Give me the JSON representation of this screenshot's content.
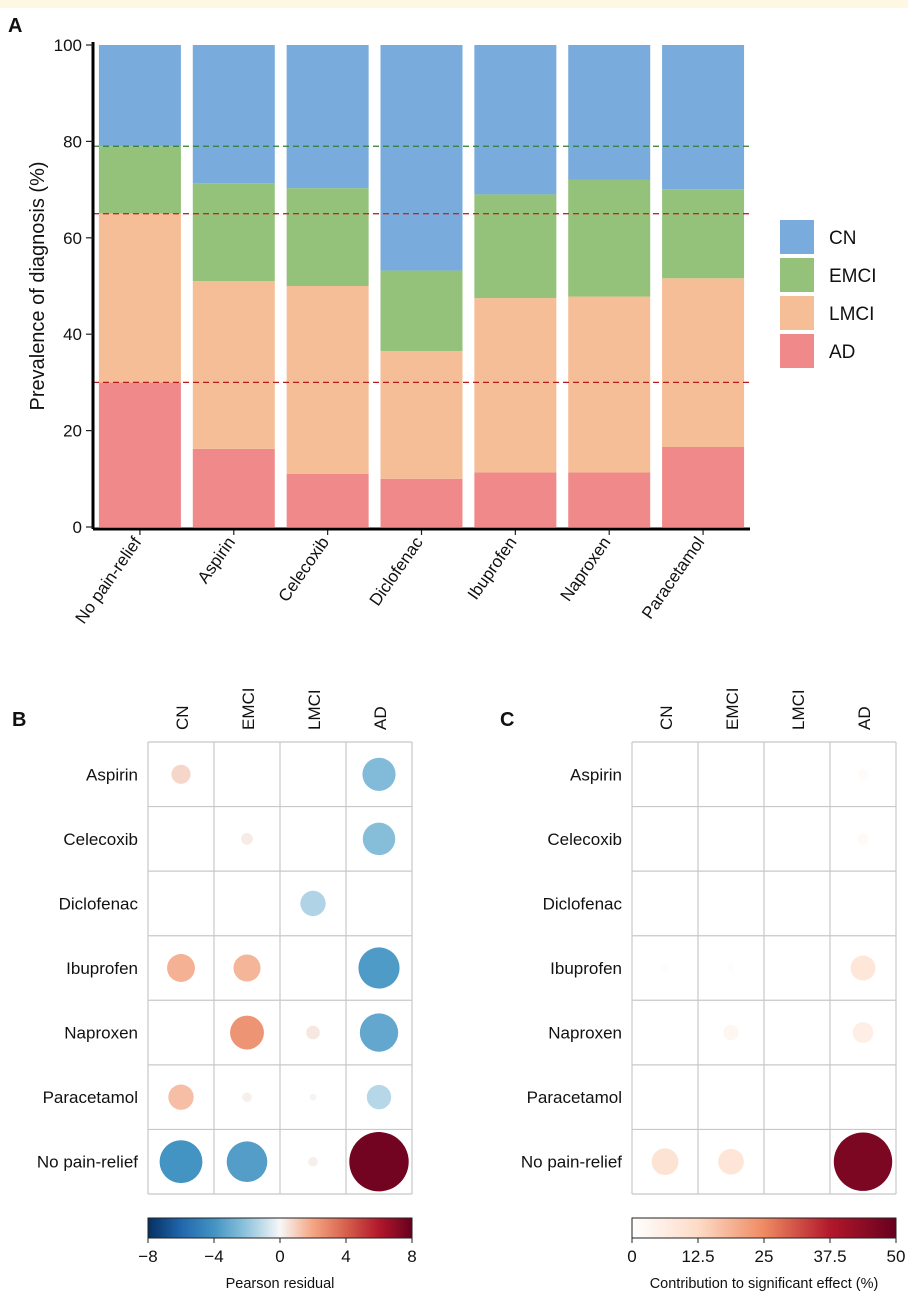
{
  "panels": {
    "a_label": "A",
    "b_label": "B",
    "c_label": "C"
  },
  "chart_data": [
    {
      "type": "bar",
      "stacked": true,
      "panel": "A",
      "ylabel": "Prevalence of diagnosis (%)",
      "xlabel": "",
      "ylim": [
        0,
        100
      ],
      "yticks": [
        0,
        20,
        40,
        60,
        80,
        100
      ],
      "categories": [
        "No pain-relief",
        "Aspirin",
        "Celecoxib",
        "Diclofenac",
        "Ibuprofen",
        "Naproxen",
        "Paracetamol"
      ],
      "series": [
        {
          "name": "AD",
          "color": "#f08a8a",
          "values": [
            30,
            16.2,
            11,
            10,
            11.3,
            11.3,
            16.6
          ]
        },
        {
          "name": "LMCI",
          "color": "#f5be97",
          "values": [
            35,
            34.8,
            39,
            26.5,
            36.2,
            36.5,
            35
          ]
        },
        {
          "name": "EMCI",
          "color": "#94c27a",
          "values": [
            14,
            20.3,
            20.3,
            16.7,
            21.5,
            24.2,
            18.5
          ]
        },
        {
          "name": "CN",
          "color": "#79acdc",
          "values": [
            21,
            28.7,
            29.7,
            46.8,
            31,
            28,
            29.9
          ]
        }
      ],
      "legend_order": [
        "CN",
        "EMCI",
        "LMCI",
        "AD"
      ],
      "reference_lines": [
        {
          "y": 79,
          "color": "#2e7d32"
        },
        {
          "y": 65,
          "color": "#c62828"
        },
        {
          "y": 30,
          "color": "#b71c1c"
        }
      ],
      "grid": false,
      "legend_position": "right"
    },
    {
      "type": "heatmap",
      "style": "bubble",
      "panel": "B",
      "columns": [
        "CN",
        "EMCI",
        "LMCI",
        "AD"
      ],
      "rows": [
        "Aspirin",
        "Celecoxib",
        "Diclofenac",
        "Ibuprofen",
        "Naproxen",
        "Paracetamol",
        "No pain-relief"
      ],
      "values": [
        [
          0.8,
          0.0,
          0.0,
          -2.4
        ],
        [
          0.0,
          0.3,
          0.0,
          -2.3
        ],
        [
          0.0,
          0.0,
          -1.4,
          0.0
        ],
        [
          1.7,
          1.6,
          0.0,
          -3.7
        ],
        [
          0.0,
          2.5,
          0.4,
          -3.2
        ],
        [
          1.4,
          0.2,
          0.1,
          -1.3
        ],
        [
          -4.0,
          -3.6,
          0.2,
          7.7
        ]
      ],
      "colorbar": {
        "label": "Pearson residual",
        "min": -8,
        "max": 8,
        "ticks": [
          "−8",
          "−4",
          "0",
          "4",
          "8"
        ]
      }
    },
    {
      "type": "heatmap",
      "style": "bubble",
      "panel": "C",
      "columns": [
        "CN",
        "EMCI",
        "LMCI",
        "AD"
      ],
      "rows": [
        "Aspirin",
        "Celecoxib",
        "Diclofenac",
        "Ibuprofen",
        "Naproxen",
        "Paracetamol",
        "No pain-relief"
      ],
      "values": [
        [
          0.0,
          0.0,
          0.0,
          1.5
        ],
        [
          0.0,
          0.0,
          0.0,
          1.8
        ],
        [
          0.0,
          0.0,
          0.3,
          0.0
        ],
        [
          0.8,
          0.7,
          0.0,
          8.5
        ],
        [
          0.0,
          3.2,
          0.1,
          5.8
        ],
        [
          0.0,
          0.0,
          0.0,
          0.0
        ],
        [
          9.7,
          9.0,
          0.1,
          46.5
        ]
      ],
      "colorbar": {
        "label": "Contribution to significant effect (%)",
        "min": 0,
        "max": 50,
        "ticks": [
          "0",
          "12.5",
          "25",
          "37.5",
          "50"
        ]
      }
    }
  ]
}
